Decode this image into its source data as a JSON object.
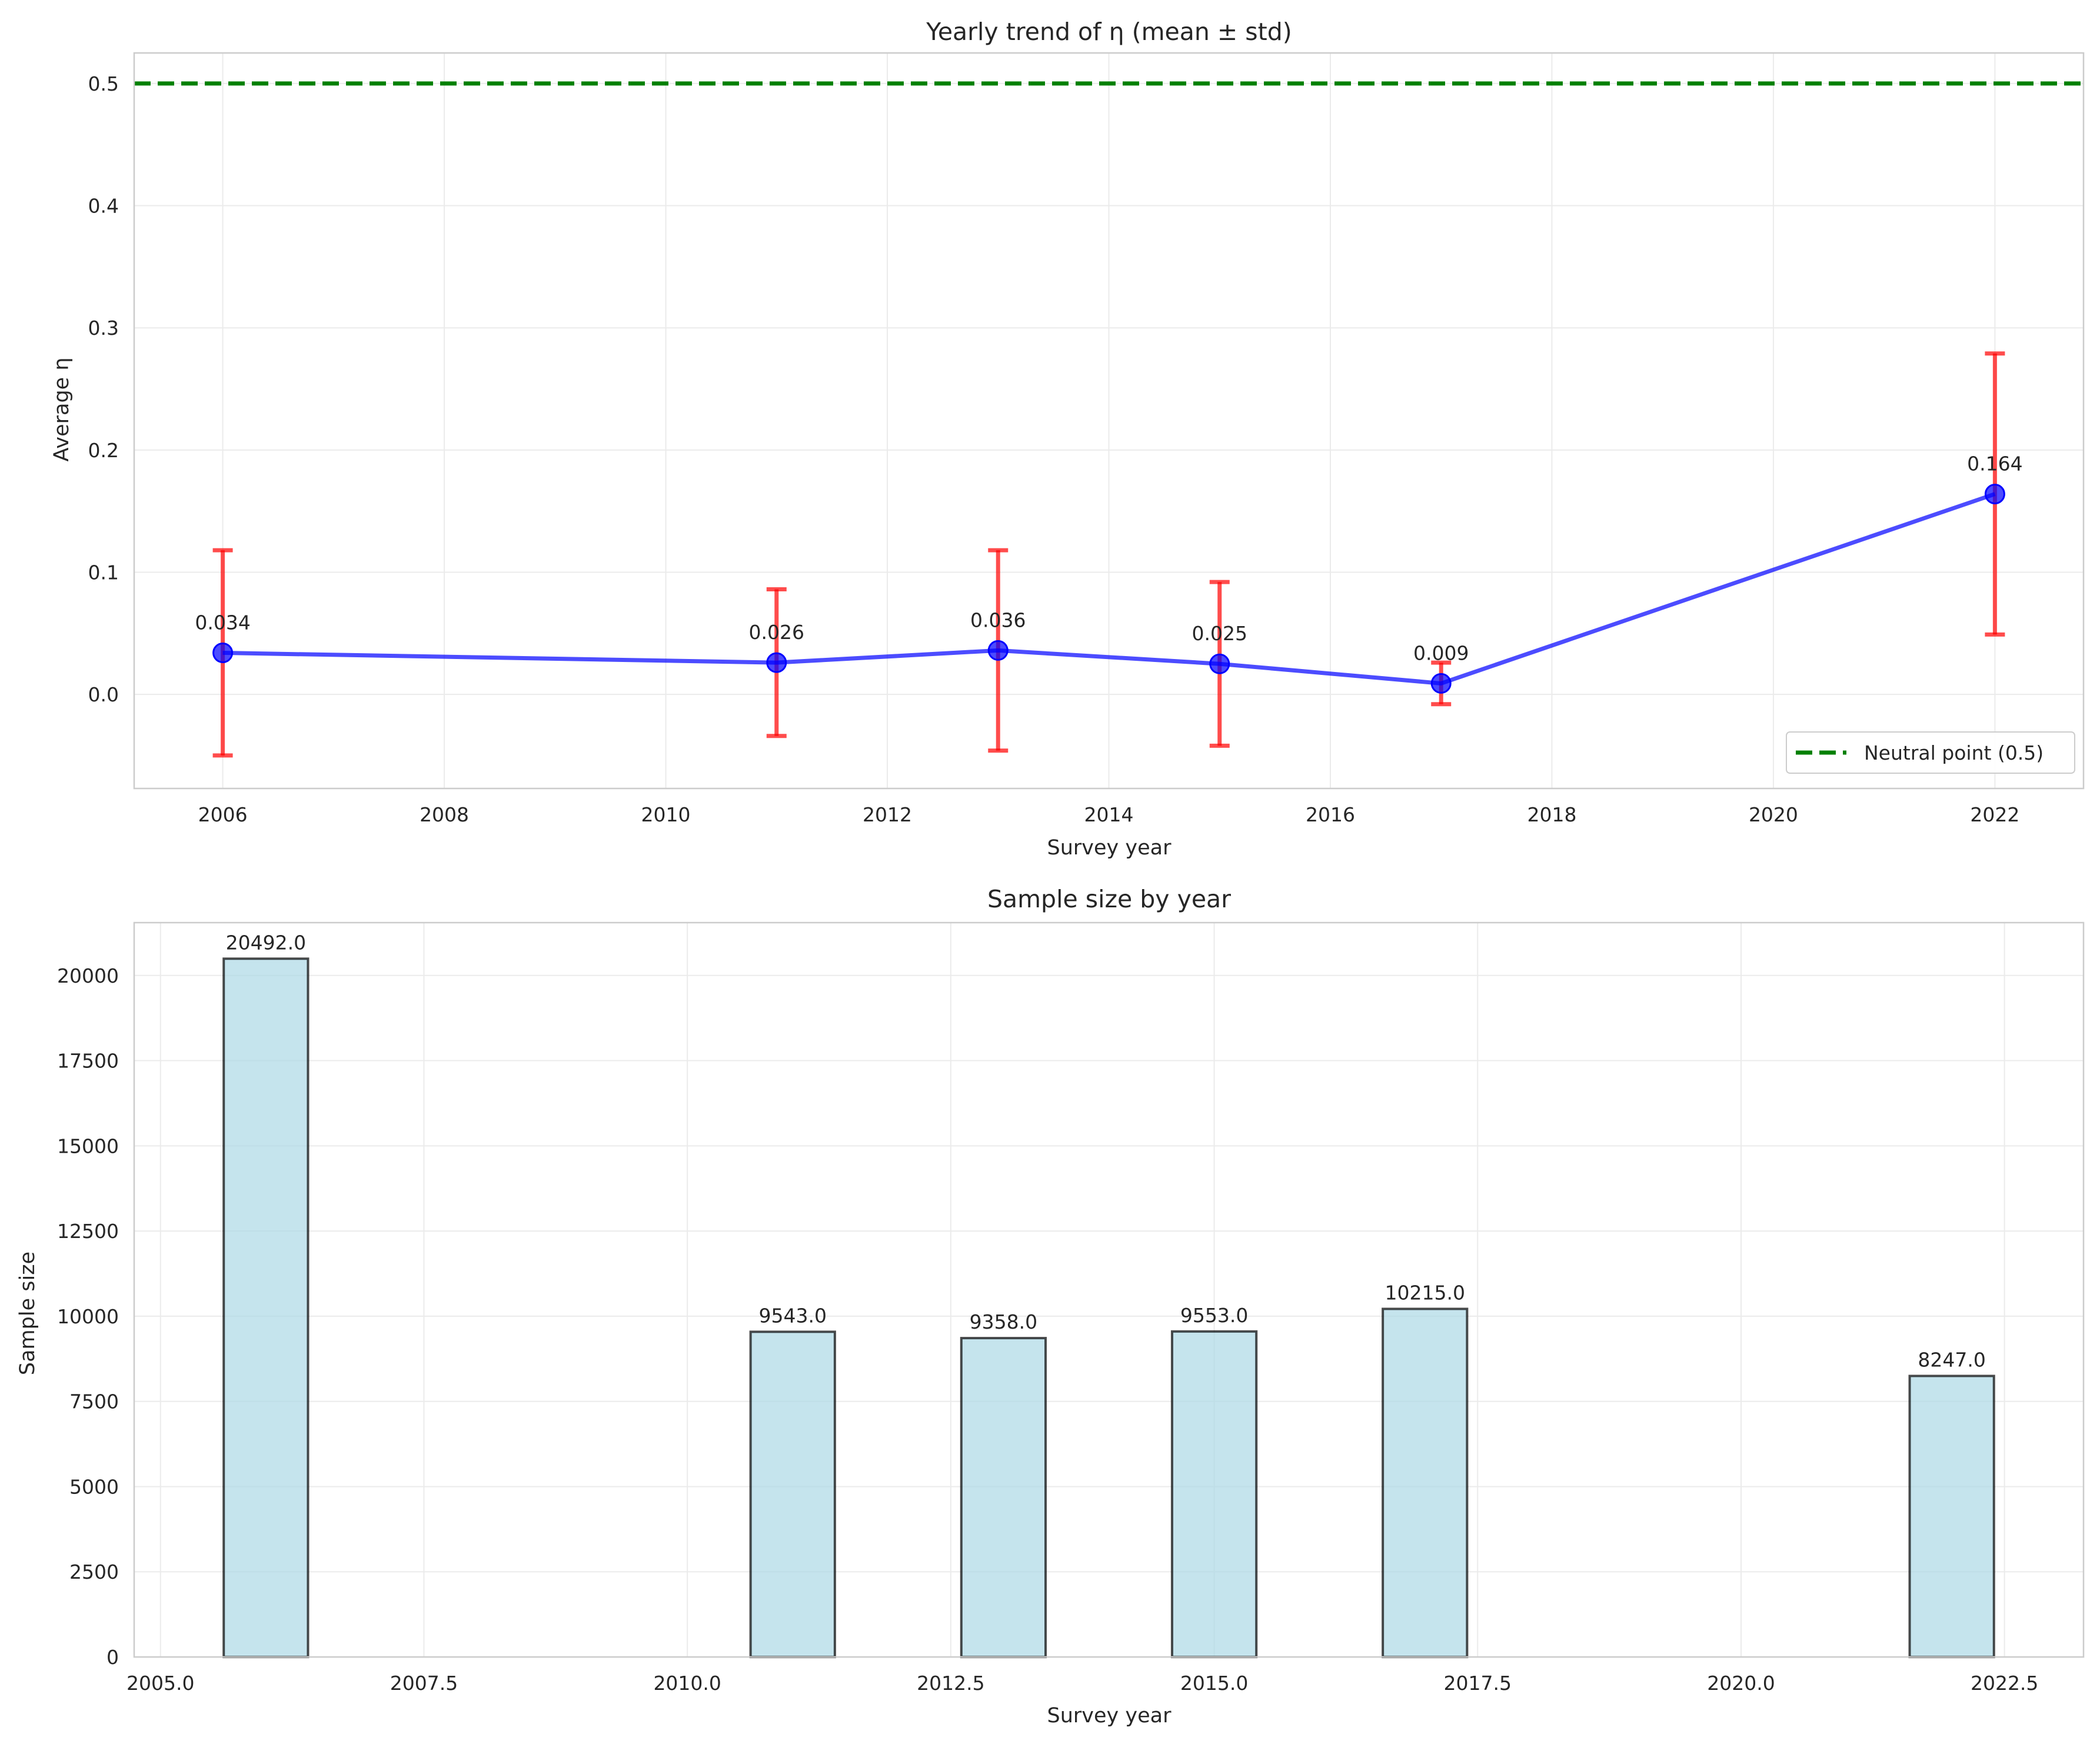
{
  "chart_data": [
    {
      "type": "line",
      "title": "Yearly trend of η (mean ± std)",
      "xlabel": "Survey year",
      "ylabel": "Average η",
      "x": [
        2006,
        2011,
        2013,
        2015,
        2017,
        2022
      ],
      "series": [
        {
          "values": [
            0.034,
            0.026,
            0.036,
            0.025,
            0.009,
            0.164
          ],
          "std": [
            0.084,
            0.06,
            0.082,
            0.067,
            0.017,
            0.115
          ],
          "labels": [
            "0.034",
            "0.026",
            "0.036",
            "0.025",
            "0.009",
            "0.164"
          ],
          "color": "#0000ff",
          "error_color": "#ff0000"
        }
      ],
      "reference_line": {
        "y": 0.5,
        "name": "Neutral point (0.5)",
        "style": "dashed",
        "color": "#008000"
      },
      "legend": {
        "placement": "lower-right",
        "entries": [
          "Neutral point (0.5)"
        ]
      },
      "xlim": [
        2005.2,
        2022.8
      ],
      "ylim": [
        -0.077,
        0.525
      ],
      "xticks": [
        2006,
        2008,
        2010,
        2012,
        2014,
        2016,
        2018,
        2020,
        2022
      ],
      "xtick_labels": [
        "2006",
        "2008",
        "2010",
        "2012",
        "2014",
        "2016",
        "2018",
        "2020",
        "2022"
      ],
      "yticks": [
        0.0,
        0.1,
        0.2,
        0.3,
        0.4,
        0.5
      ],
      "ytick_labels": [
        "0.0",
        "0.1",
        "0.2",
        "0.3",
        "0.4",
        "0.5"
      ],
      "grid": true
    },
    {
      "type": "bar",
      "title": "Sample size by year",
      "xlabel": "Survey year",
      "ylabel": "Sample size",
      "x": [
        2006,
        2011,
        2013,
        2015,
        2017,
        2022
      ],
      "bar_width": 0.8,
      "values": [
        20492,
        9543,
        9358,
        9553,
        10215,
        8247
      ],
      "labels": [
        "20492.0",
        "9543.0",
        "9358.0",
        "9553.0",
        "10215.0",
        "8247.0"
      ],
      "bar_color": "#add8e6",
      "edge_color": "#000000",
      "xlim": [
        2004.75,
        2023.25
      ],
      "ylim": [
        0,
        21550
      ],
      "xticks": [
        2005.0,
        2007.5,
        2010.0,
        2012.5,
        2015.0,
        2017.5,
        2020.0,
        2022.5
      ],
      "xtick_labels": [
        "2005.0",
        "2007.5",
        "2010.0",
        "2012.5",
        "2015.0",
        "2017.5",
        "2020.0",
        "2022.5"
      ],
      "yticks": [
        0,
        2500,
        5000,
        7500,
        10000,
        12500,
        15000,
        17500,
        20000
      ],
      "ytick_labels": [
        "0",
        "2500",
        "5000",
        "7500",
        "10000",
        "12500",
        "15000",
        "17500",
        "20000"
      ],
      "grid": true
    }
  ]
}
